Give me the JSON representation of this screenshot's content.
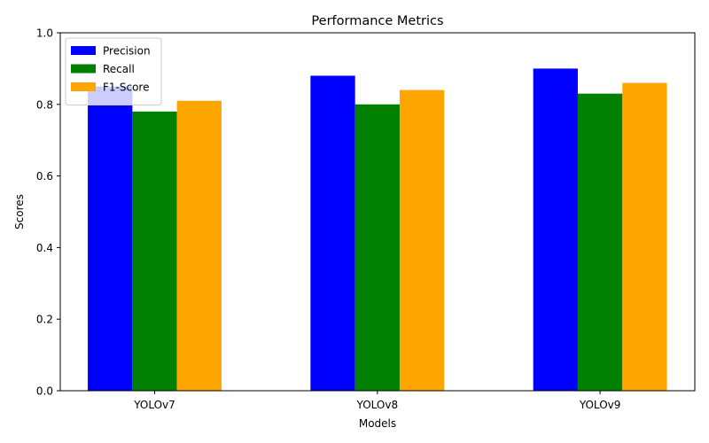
{
  "chart_data": {
    "type": "bar",
    "title": "Performance Metrics",
    "xlabel": "Models",
    "ylabel": "Scores",
    "categories": [
      "YOLOv7",
      "YOLOv8",
      "YOLOv9"
    ],
    "series": [
      {
        "name": "Precision",
        "values": [
          0.85,
          0.88,
          0.9
        ],
        "color": "#0000ff"
      },
      {
        "name": "Recall",
        "values": [
          0.78,
          0.8,
          0.83
        ],
        "color": "#008000"
      },
      {
        "name": "F1-Score",
        "values": [
          0.81,
          0.84,
          0.86
        ],
        "color": "#ffa500"
      }
    ],
    "ylim": [
      0,
      1.0
    ],
    "yticks": [
      "0.0",
      "0.2",
      "0.4",
      "0.6",
      "0.8",
      "1.0"
    ],
    "grid": false,
    "legend_position": "top-left"
  }
}
